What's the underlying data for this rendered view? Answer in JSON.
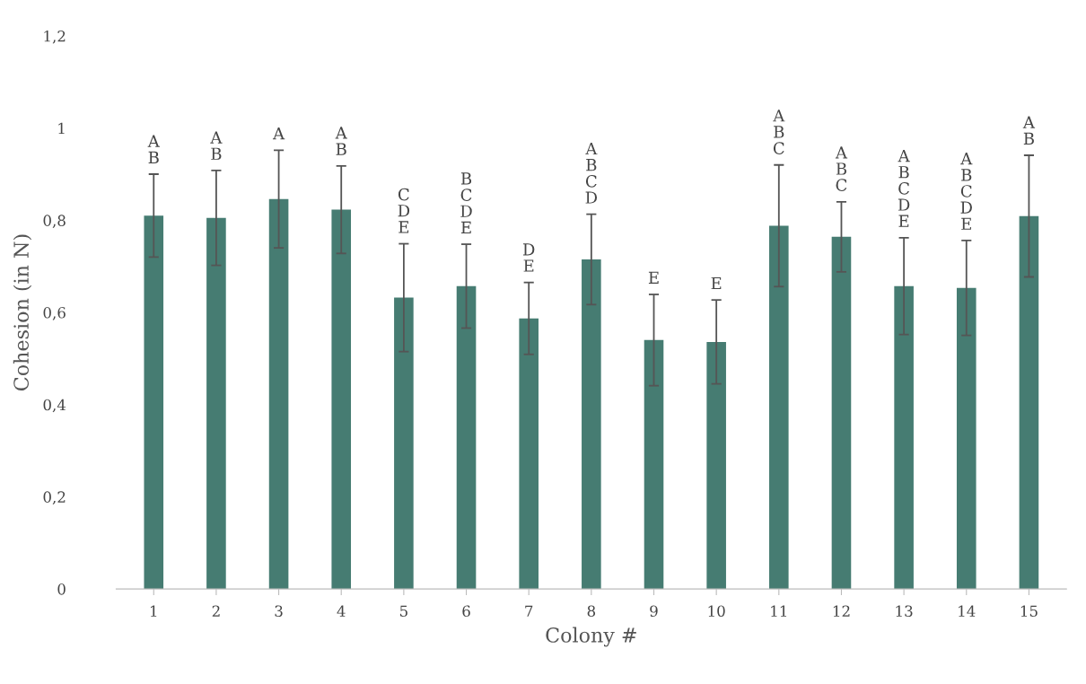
{
  "chart_data": {
    "type": "bar",
    "xlabel": "Colony #",
    "ylabel": "Cohesion (in N)",
    "color": "#467c72",
    "categories": [
      "1",
      "2",
      "3",
      "4",
      "5",
      "6",
      "7",
      "8",
      "9",
      "10",
      "11",
      "12",
      "13",
      "14",
      "15"
    ],
    "values": [
      0.81,
      0.805,
      0.846,
      0.823,
      0.632,
      0.657,
      0.587,
      0.715,
      0.54,
      0.536,
      0.788,
      0.764,
      0.657,
      0.653,
      0.809
    ],
    "errors": [
      0.09,
      0.103,
      0.106,
      0.095,
      0.117,
      0.091,
      0.078,
      0.098,
      0.099,
      0.091,
      0.132,
      0.076,
      0.105,
      0.103,
      0.132
    ],
    "ylim": [
      0,
      1.2
    ],
    "yticks": [
      0,
      {
        "value": 0.2,
        "label": "0,2"
      },
      {
        "value": 0.4,
        "label": "0,4"
      },
      {
        "value": 0.6,
        "label": "0,6"
      },
      {
        "value": 0.8,
        "label": "0,8"
      },
      1,
      {
        "value": 1.2,
        "label": "1,2"
      }
    ],
    "grid": false,
    "legend": false,
    "annotations": [
      {
        "text": "A\nB",
        "x": "1",
        "y": 0.9
      },
      {
        "text": "A\nB",
        "x": "2",
        "y": 0.908
      },
      {
        "text": "A",
        "x": "3",
        "y": 0.952
      },
      {
        "text": "A\nB",
        "x": "4",
        "y": 0.918
      },
      {
        "text": "C\nD\nE",
        "x": "5",
        "y": 0.749
      },
      {
        "text": "B\nC\nD\nE",
        "x": "6",
        "y": 0.748
      },
      {
        "text": "D\nE",
        "x": "7",
        "y": 0.665
      },
      {
        "text": "A\nB\nC\nD",
        "x": "8",
        "y": 0.813
      },
      {
        "text": "E",
        "x": "9",
        "y": 0.639
      },
      {
        "text": "E",
        "x": "10",
        "y": 0.627
      },
      {
        "text": "A\nB\nC",
        "x": "11",
        "y": 0.92
      },
      {
        "text": "A\nB\nC",
        "x": "12",
        "y": 0.84
      },
      {
        "text": "A\nB\nC\nD\nE",
        "x": "13",
        "y": 0.762
      },
      {
        "text": "A\nB\nC\nD\nE",
        "x": "14",
        "y": 0.756
      },
      {
        "text": "A\nB",
        "x": "15",
        "y": 0.941
      }
    ]
  }
}
